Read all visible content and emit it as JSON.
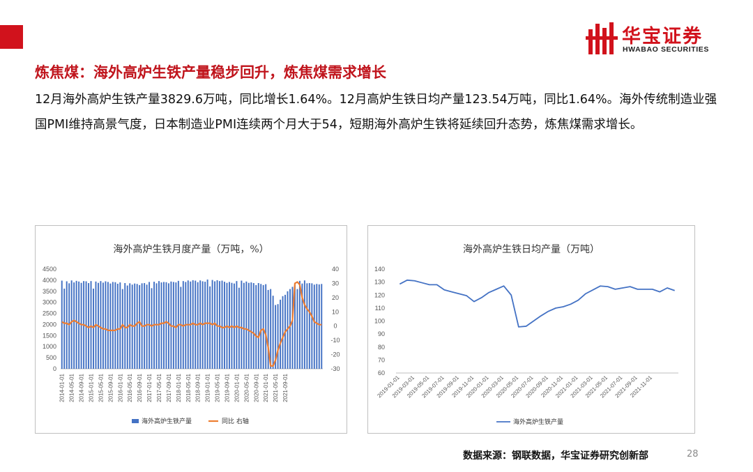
{
  "slide": {
    "headline": "炼焦煤：海外高炉生铁产量稳步回升，炼焦煤需求增长",
    "body": "12月海外高炉生铁产量3829.6万吨，同比增长1.64%。12月高炉生铁日均产量123.54万吨，同比1.64%。海外传统制造业强国PMI维持高景气度，日本制造业PMI连续两个月大于54，短期海外高炉生铁将延续回升态势，炼焦煤需求增长。",
    "source": "数据来源：钢联数据，华宝证券研究创新部",
    "page_number": "28"
  },
  "brand": {
    "name_cn": "华宝证券",
    "name_en": "HWABAO SECURITIES",
    "accent_color": "#d1121c",
    "headline_color": "#c0141c"
  },
  "chart_data": [
    {
      "type": "bar+line",
      "title": "海外高炉生铁月度产量（万吨，%）",
      "x_tick_labels": [
        "2014-01-01",
        "2014-05-01",
        "2014-09-01",
        "2015-01-01",
        "2015-05-01",
        "2015-09-01",
        "2016-01-01",
        "2016-05-01",
        "2016-09-01",
        "2017-01-01",
        "2017-05-01",
        "2017-09-01",
        "2018-01-01",
        "2018-05-01",
        "2018-09-01",
        "2019-01-01",
        "2019-05-01",
        "2019-09-01",
        "2020-01-01",
        "2020-05-01",
        "2020-09-01",
        "2021-01-01",
        "2021-05-01",
        "2021-09-01"
      ],
      "y_left": {
        "ticks": [
          "0",
          "500",
          "1000",
          "1500",
          "2000",
          "2500",
          "3000",
          "3500",
          "4000",
          "4500"
        ],
        "range": [
          0,
          4500
        ]
      },
      "y_right": {
        "ticks": [
          "-30",
          "-20",
          "-10",
          "0",
          "10",
          "20",
          "30",
          "40"
        ],
        "range": [
          -30,
          40
        ]
      },
      "legend_position": "bottom",
      "series": [
        {
          "name": "海外高炉生铁产量",
          "type": "bar",
          "axis": "left",
          "color": "#4472c4",
          "values": [
            3980,
            3620,
            3950,
            3860,
            3990,
            3900,
            3970,
            3940,
            3880,
            3960,
            3950,
            3870,
            3960,
            3620,
            3940,
            3880,
            3960,
            3890,
            3950,
            3920,
            3850,
            3920,
            3910,
            3840,
            3900,
            3600,
            3870,
            3760,
            3860,
            3800,
            3850,
            3830,
            3780,
            3860,
            3870,
            3800,
            3920,
            3640,
            3930,
            3860,
            3960,
            3900,
            3920,
            3910,
            3860,
            3940,
            3920,
            3900,
            3970,
            3700,
            3960,
            3920,
            3990,
            3940,
            4000,
            3980,
            3910,
            3990,
            3950,
            3930,
            4030,
            3720,
            4010,
            3950,
            4000,
            3960,
            3980,
            3930,
            3880,
            3920,
            3880,
            3850,
            3960,
            3660,
            3980,
            3880,
            3940,
            3880,
            3900,
            3870,
            3780,
            3870,
            3830,
            3780,
            3820,
            3560,
            3600,
            3300,
            2880,
            2920,
            3120,
            3280,
            3340,
            3500,
            3600,
            3700,
            3880,
            3600,
            3970,
            3850,
            3990,
            3860,
            3870,
            3860,
            3800,
            3830,
            3810,
            3830
          ]
        },
        {
          "name": "同比 右轴",
          "type": "line",
          "axis": "right",
          "color": "#ed7d31",
          "values": [
            3,
            2,
            2,
            1,
            3,
            4,
            3,
            2,
            1,
            1,
            0,
            -1,
            0,
            -1,
            1,
            0,
            -1,
            -2,
            -2,
            -3,
            -3,
            -3,
            -3,
            -2,
            -2,
            1,
            -1,
            -1,
            1,
            0,
            0,
            2,
            3,
            0,
            0,
            1,
            1,
            0,
            1,
            1,
            1,
            2,
            2,
            3,
            2,
            0,
            0,
            -1,
            1,
            1,
            0,
            1,
            1,
            1,
            2,
            1,
            1,
            2,
            1,
            2,
            2,
            2,
            1,
            2,
            0,
            0,
            -1,
            -1,
            0,
            -1,
            0,
            -1,
            0,
            -1,
            -1,
            -2,
            -2,
            -3,
            -4,
            -5,
            -7,
            -8,
            -3,
            -2,
            -6,
            -15,
            -28,
            -28,
            -24,
            -17,
            -12,
            -8,
            -4,
            -2,
            0,
            4,
            30,
            31,
            29,
            20,
            15,
            12,
            10,
            7,
            3,
            2,
            1,
            1
          ]
        }
      ]
    },
    {
      "type": "line",
      "title": "海外高炉生铁日均产量（万吨）",
      "x_tick_labels": [
        "2019-01-01",
        "2019-03-01",
        "2019-05-01",
        "2019-07-01",
        "2019-09-01",
        "2019-11-01",
        "2020-01-01",
        "2020-03-01",
        "2020-05-01",
        "2020-07-01",
        "2020-09-01",
        "2020-11-01",
        "2021-01-01",
        "2021-03-01",
        "2021-05-01",
        "2021-07-01",
        "2021-09-01",
        "2021-11-01"
      ],
      "y": {
        "ticks": [
          "60",
          "70",
          "80",
          "90",
          "100",
          "110",
          "120",
          "130",
          "140"
        ],
        "range": [
          60,
          140
        ]
      },
      "legend_position": "bottom",
      "series": [
        {
          "name": "海外高炉生铁产量",
          "color": "#4472c4",
          "values": [
            128.5,
            131.5,
            131,
            129.5,
            128,
            128,
            124,
            122.5,
            121,
            119.5,
            115,
            118,
            122,
            124.5,
            127,
            120,
            95.5,
            96,
            100,
            104,
            107.5,
            110,
            111,
            113,
            116,
            121,
            124,
            127,
            126.5,
            124.5,
            125.5,
            126.5,
            124.5,
            124.5,
            124.5,
            122.5,
            125.5,
            123.5
          ]
        }
      ]
    }
  ]
}
